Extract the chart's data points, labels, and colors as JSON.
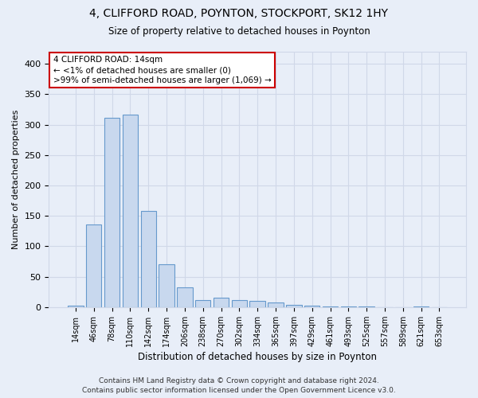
{
  "title1": "4, CLIFFORD ROAD, POYNTON, STOCKPORT, SK12 1HY",
  "title2": "Size of property relative to detached houses in Poynton",
  "xlabel": "Distribution of detached houses by size in Poynton",
  "ylabel": "Number of detached properties",
  "categories": [
    "14sqm",
    "46sqm",
    "78sqm",
    "110sqm",
    "142sqm",
    "174sqm",
    "206sqm",
    "238sqm",
    "270sqm",
    "302sqm",
    "334sqm",
    "365sqm",
    "397sqm",
    "429sqm",
    "461sqm",
    "493sqm",
    "525sqm",
    "557sqm",
    "589sqm",
    "621sqm",
    "653sqm"
  ],
  "values": [
    3,
    136,
    311,
    316,
    158,
    71,
    33,
    12,
    15,
    12,
    10,
    7,
    4,
    3,
    1,
    1,
    1,
    0,
    0,
    1,
    0
  ],
  "bar_color": "#c8d8ee",
  "bar_edgecolor": "#6699cc",
  "annotation_line1": "4 CLIFFORD ROAD: 14sqm",
  "annotation_line2": "← <1% of detached houses are smaller (0)",
  "annotation_line3": ">99% of semi-detached houses are larger (1,069) →",
  "annotation_box_color": "#ffffff",
  "annotation_box_edgecolor": "#cc0000",
  "ylim": [
    0,
    420
  ],
  "yticks": [
    0,
    50,
    100,
    150,
    200,
    250,
    300,
    350,
    400
  ],
  "footer": "Contains HM Land Registry data © Crown copyright and database right 2024.\nContains public sector information licensed under the Open Government Licence v3.0.",
  "background_color": "#e8eef8",
  "grid_color": "#d0d8e8",
  "title1_fontsize": 10,
  "title2_fontsize": 8.5
}
